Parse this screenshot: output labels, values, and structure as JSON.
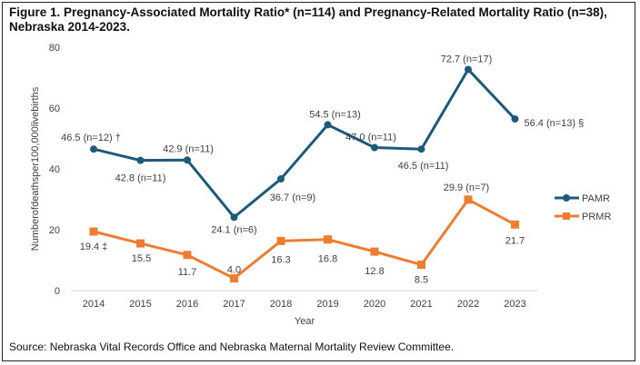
{
  "title": "Figure 1. Pregnancy-Associated Mortality Ratio* (n=114) and Pregnancy-Related Mortality Ratio (n=38), Nebraska 2014-2023.",
  "source": "Source: Nebraska Vital Records Office and Nebraska Maternal Mortality Review Committee.",
  "chart_data": {
    "type": "line",
    "xlabel": "Year",
    "ylabel": "Numberofdeathsper100,000livebirths",
    "ylim": [
      0,
      80
    ],
    "yticks": [
      "0",
      "20",
      "40",
      "60",
      "80"
    ],
    "categories": [
      "2014",
      "2015",
      "2016",
      "2017",
      "2018",
      "2019",
      "2020",
      "2021",
      "2022",
      "2023"
    ],
    "grid": false,
    "legend_position": "right",
    "series": [
      {
        "name": "PAMR",
        "color": "#1b5a7a",
        "marker": "circle",
        "values": [
          46.5,
          42.8,
          42.9,
          24.1,
          36.7,
          54.5,
          47.0,
          46.5,
          72.7,
          56.4
        ],
        "labels": [
          "46.5 (n=12) †",
          "42.8 (n=11)",
          "42.9 (n=11)",
          "24.1 (n=6)",
          "36.7 (n=9)",
          "54.5 (n=13)",
          "47.0 (n=11)",
          "46.5 (n=11)",
          "72.7 (n=17)",
          "56.4 (n=13) §"
        ]
      },
      {
        "name": "PRMR",
        "color": "#ed7d31",
        "marker": "square",
        "values": [
          19.4,
          15.5,
          11.7,
          4.0,
          16.3,
          16.8,
          12.8,
          8.5,
          29.9,
          21.7
        ],
        "labels": [
          "19.4 ‡",
          "15.5",
          "11.7",
          "4.0",
          "16.3",
          "16.8",
          "12.8",
          "8.5",
          "29.9 (n=7)",
          "21.7"
        ]
      }
    ]
  }
}
